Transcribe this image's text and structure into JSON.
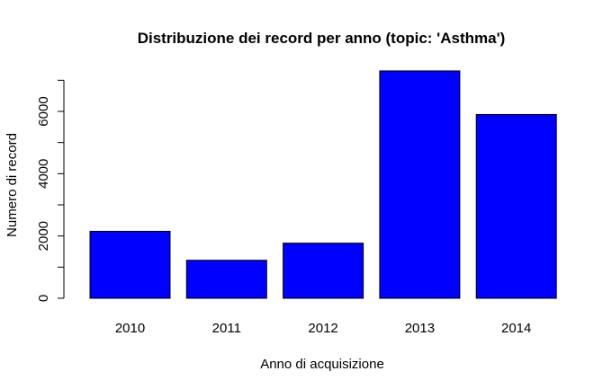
{
  "chart_data": {
    "type": "bar",
    "title": "Distribuzione dei record per anno (topic: 'Asthma')",
    "xlabel": "Anno di acquisizione",
    "ylabel": "Numero di record",
    "categories": [
      "2010",
      "2011",
      "2012",
      "2013",
      "2014"
    ],
    "values": [
      2150,
      1220,
      1770,
      7300,
      5900
    ],
    "yticks": [
      0,
      2000,
      4000,
      6000
    ],
    "ylim": [
      0,
      7300
    ],
    "bar_color": "#0000ff",
    "grid": false,
    "legend": "none"
  }
}
